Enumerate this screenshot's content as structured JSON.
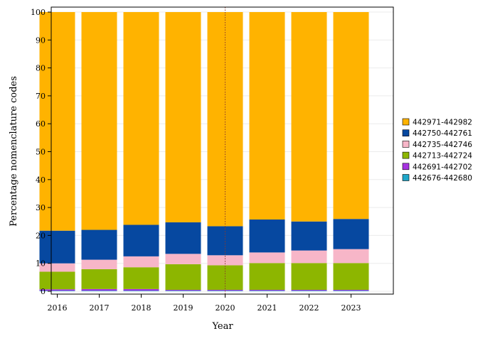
{
  "chart_data": {
    "type": "bar",
    "stacked": true,
    "percent": true,
    "xlabel": "Year",
    "ylabel": "Percentage nomenclature codes",
    "categories": [
      "2016",
      "2017",
      "2018",
      "2019",
      "2020",
      "2021",
      "2022",
      "2023"
    ],
    "ylim": [
      0,
      100
    ],
    "yticks": [
      0,
      10,
      20,
      30,
      40,
      50,
      60,
      70,
      80,
      90,
      100
    ],
    "grid": true,
    "reference_line": {
      "x": "2020",
      "style": "dotted",
      "color": "#8b3a2b"
    },
    "legend_position": "right",
    "series": [
      {
        "name": "442676-442680",
        "color": "#1fa7c9",
        "values": [
          0.2,
          0.2,
          0.2,
          0.2,
          0.2,
          0.2,
          0.2,
          0.2
        ]
      },
      {
        "name": "442691-442702",
        "color": "#a633e0",
        "values": [
          0.5,
          0.6,
          0.6,
          0.3,
          0.3,
          0.3,
          0.3,
          0.3
        ]
      },
      {
        "name": "442713-442724",
        "color": "#8db600",
        "values": [
          6.3,
          7.1,
          7.8,
          9.2,
          8.8,
          9.6,
          9.6,
          9.6
        ]
      },
      {
        "name": "442735-442746",
        "color": "#f7b6c8",
        "values": [
          3.0,
          3.4,
          3.9,
          3.7,
          3.6,
          3.8,
          4.5,
          5.0
        ]
      },
      {
        "name": "442750-442761",
        "color": "#0648a0",
        "values": [
          11.7,
          10.7,
          11.3,
          11.3,
          10.4,
          11.8,
          10.4,
          10.8
        ]
      },
      {
        "name": "442971-442982",
        "color": "#ffb300",
        "values": [
          78.3,
          78.0,
          76.2,
          75.3,
          76.7,
          74.3,
          75.0,
          74.1
        ]
      }
    ]
  }
}
